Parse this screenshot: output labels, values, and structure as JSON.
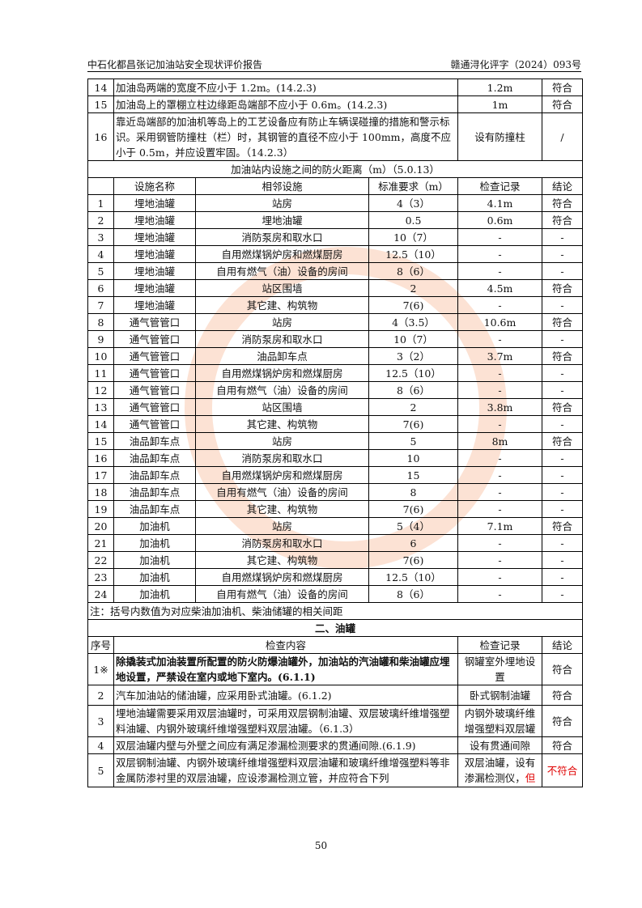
{
  "header": {
    "title": "中石化都昌张记加油站安全现状评价报告",
    "doc_no": "赣通浔化评字（2024）093号"
  },
  "top_rows": [
    {
      "no": "14",
      "content": "加油岛两端的宽度不应小于 1.2m。(14.2.3)",
      "record": "1.2m",
      "result": "符合"
    },
    {
      "no": "15",
      "content": "加油岛上的罩棚立柱边缘距岛端部不应小于 0.6m。(14.2.3)",
      "record": "1m",
      "result": "符合"
    },
    {
      "no": "16",
      "content": "靠近岛端部的加油机等岛上的工艺设备应有防止车辆误碰撞的措施和警示标识。采用钢管防撞柱（栏）时，其钢管的直径不应小于 100mm，高度不应小于 0.5m，并应设置牢固。（14.2.3）",
      "record": "设有防撞柱",
      "result": "/"
    }
  ],
  "distance_section": {
    "title": "加油站内设施之间的防火距离（m）（5.0.13）",
    "headers": [
      "",
      "设施名称",
      "相邻设施",
      "标准要求（m）",
      "检查记录",
      "结论"
    ],
    "rows": [
      [
        "1",
        "埋地油罐",
        "站房",
        "4（3）",
        "4.1m",
        "符合"
      ],
      [
        "2",
        "埋地油罐",
        "埋地油罐",
        "0.5",
        "0.6m",
        "符合"
      ],
      [
        "3",
        "埋地油罐",
        "消防泵房和取水口",
        "10（7）",
        "-",
        "-"
      ],
      [
        "4",
        "埋地油罐",
        "自用燃煤锅炉房和燃煤厨房",
        "12.5（10）",
        "-",
        "-"
      ],
      [
        "5",
        "埋地油罐",
        "自用有燃气（油）设备的房间",
        "8（6）",
        "-",
        "-"
      ],
      [
        "6",
        "埋地油罐",
        "站区围墙",
        "2",
        "4.5m",
        "符合"
      ],
      [
        "7",
        "埋地油罐",
        "其它建、构筑物",
        "7(6)",
        "-",
        "-"
      ],
      [
        "8",
        "通气管管口",
        "站房",
        "4（3.5）",
        "10.6m",
        "符合"
      ],
      [
        "9",
        "通气管管口",
        "消防泵房和取水口",
        "10（7）",
        "-",
        "-"
      ],
      [
        "10",
        "通气管管口",
        "油品卸车点",
        "3（2）",
        "3.7m",
        "符合"
      ],
      [
        "11",
        "通气管管口",
        "自用燃煤锅炉房和燃煤厨房",
        "12.5（10）",
        "-",
        "-"
      ],
      [
        "12",
        "通气管管口",
        "自用有燃气（油）设备的房间",
        "8（6）",
        "-",
        "-"
      ],
      [
        "13",
        "通气管管口",
        "站区围墙",
        "2",
        "3.8m",
        "符合"
      ],
      [
        "14",
        "通气管管口",
        "其它建、构筑物",
        "7(6)",
        "-",
        "-"
      ],
      [
        "15",
        "油品卸车点",
        "站房",
        "5",
        "8m",
        "符合"
      ],
      [
        "16",
        "油品卸车点",
        "消防泵房和取水口",
        "10",
        "-",
        "-"
      ],
      [
        "17",
        "油品卸车点",
        "自用燃煤锅炉房和燃煤厨房",
        "15",
        "-",
        "-"
      ],
      [
        "18",
        "油品卸车点",
        "自用有燃气（油）设备的房间",
        "8",
        "-",
        "-"
      ],
      [
        "19",
        "油品卸车点",
        "其它建、构筑物",
        "7(6)",
        "-",
        "-"
      ],
      [
        "20",
        "加油机",
        "站房",
        "5（4）",
        "7.1m",
        "符合"
      ],
      [
        "21",
        "加油机",
        "消防泵房和取水口",
        "6",
        "-",
        "-"
      ],
      [
        "22",
        "加油机",
        "其它建、构筑物",
        "7(6)",
        "-",
        "-"
      ],
      [
        "23",
        "加油机",
        "自用燃煤锅炉房和燃煤厨房",
        "12.5（10）",
        "-",
        "-"
      ],
      [
        "24",
        "加油机",
        "自用有燃气（油）设备的房间",
        "8（6）",
        "-",
        "-"
      ]
    ],
    "note": "注：括号内数值为对应柴油加油机、柴油储罐的相关间距"
  },
  "tank_section": {
    "title": "二、油罐",
    "headers": [
      "序号",
      "检查内容",
      "检查记录",
      "结论"
    ],
    "rows": [
      {
        "no": "1※",
        "content": "除撬装式加油装置所配置的防火防爆油罐外，加油站的汽油罐和柴油罐应埋地设置，严禁设在室内或地下室内。(6.1.1)",
        "record": "钢罐室外埋地设置",
        "result": "符合"
      },
      {
        "no": "2",
        "content": "汽车加油站的储油罐，应采用卧式油罐。(6.1.2)",
        "record": "卧式钢制油罐",
        "result": "符合"
      },
      {
        "no": "3",
        "content": "埋地油罐需要采用双层油罐时，可采用双层钢制油罐、双层玻璃纤维增强塑料油罐、内钢外玻璃纤维增强塑料双层油罐。（6.1.3）",
        "record": "内钢外玻璃纤维增强塑料双层罐",
        "result": "符合"
      },
      {
        "no": "4",
        "content": "双层油罐内壁与外壁之间应有满足渗漏检测要求的贯通间隙.(6.1.9)",
        "record": "设有贯通间隙",
        "result": "符合"
      },
      {
        "no": "5",
        "content": "双层钢制油罐、内钢外玻璃纤维增强塑料双层油罐和玻璃纤维增强塑料等非金属防渗衬里的双层油罐，应设渗漏检测立管，并应符合下列",
        "record": "双层油罐，设有渗漏检测仪，",
        "record_red": "但",
        "result": "不符合"
      }
    ]
  },
  "page_number": "50",
  "colors": {
    "fail": "#e00000"
  }
}
